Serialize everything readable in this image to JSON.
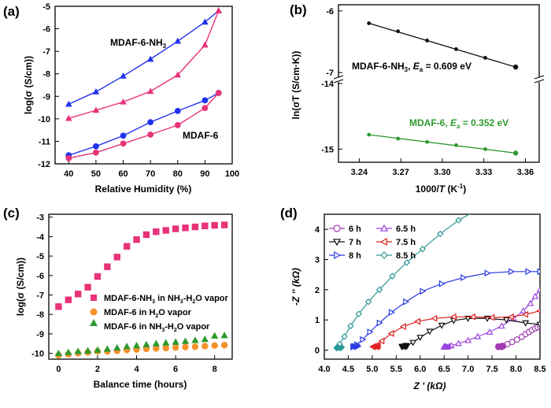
{
  "chart_data": [
    {
      "panel": "(a)",
      "type": "line",
      "xlabel": "Relative Humidity (%)",
      "ylabel": "log(σ (S/cm))",
      "xlim": [
        35,
        100
      ],
      "ylim": [
        -12,
        -5
      ],
      "xticks": [
        "40",
        "50",
        "60",
        "70",
        "80",
        "90",
        "100"
      ],
      "yticks": [
        "-12",
        "-11",
        "-10",
        "-9",
        "-8",
        "-7",
        "-6",
        "-5"
      ],
      "series": [
        {
          "name": "MDAF-6-NH3 (blue)",
          "color": "#2233ee",
          "marker": "triangle",
          "x": [
            40,
            50,
            60,
            70,
            80,
            90,
            95
          ],
          "y": [
            -9.35,
            -8.8,
            -8.1,
            -7.35,
            -6.55,
            -5.7,
            -5.2
          ]
        },
        {
          "name": "MDAF-6-NH3 (pink)",
          "color": "#e8337a",
          "marker": "triangle",
          "x": [
            40,
            50,
            60,
            70,
            80,
            90,
            95
          ],
          "y": [
            -9.98,
            -9.62,
            -9.25,
            -8.78,
            -8.05,
            -6.72,
            -5.2
          ]
        },
        {
          "name": "MDAF-6 (blue)",
          "color": "#2233ee",
          "marker": "circle",
          "x": [
            40,
            50,
            60,
            70,
            80,
            90,
            95
          ],
          "y": [
            -11.62,
            -11.22,
            -10.75,
            -10.15,
            -9.65,
            -9.18,
            -8.85
          ]
        },
        {
          "name": "MDAF-6 (pink)",
          "color": "#e8337a",
          "marker": "circle",
          "x": [
            40,
            50,
            60,
            70,
            80,
            90,
            95
          ],
          "y": [
            -11.75,
            -11.5,
            -11.1,
            -10.7,
            -10.28,
            -9.52,
            -8.85
          ]
        }
      ],
      "annotations": {
        "label1": "MDAF-6-NH",
        "label1_sub": "3",
        "label2": "MDAF-6"
      }
    },
    {
      "panel": "(b)",
      "type": "scatter",
      "xlabel_pre": "1000/",
      "xlabel_it": "T",
      "xlabel_post": " (K",
      "xlabel_sup": "-1",
      "xlabel_end": ")",
      "ylabel": "ln(σT (S/cm·K))",
      "xlim": [
        3.225,
        3.37
      ],
      "xticks": [
        "3.24",
        "3.27",
        "3.30",
        "3.33",
        "3.36"
      ],
      "yticks_upper": [
        "-7",
        "-6"
      ],
      "yticks_lower": [
        "-15",
        "-14"
      ],
      "series": [
        {
          "name": "MDAF-6-NH3",
          "color": "#111111",
          "x": [
            3.247,
            3.268,
            3.289,
            3.31,
            3.331,
            3.353
          ],
          "y": [
            -6.2,
            -6.33,
            -6.48,
            -6.62,
            -6.76,
            -6.91
          ]
        },
        {
          "name": "MDAF-6",
          "color": "#2f9a2f",
          "x": [
            3.247,
            3.268,
            3.289,
            3.31,
            3.331,
            3.353
          ],
          "y": [
            -14.78,
            -14.84,
            -14.89,
            -14.94,
            -15.0,
            -15.06
          ]
        }
      ],
      "annotations": {
        "nh3_a": "MDAF-6-NH",
        "nh3_b": "3",
        "nh3_c": ", ",
        "nh3_d": "E",
        "nh3_e": "a",
        "nh3_f": " = 0.609 eV",
        "m6_a": "MDAF-6, ",
        "m6_b": "E",
        "m6_c": "a",
        "m6_d": " = 0.352 eV"
      }
    },
    {
      "panel": "(c)",
      "type": "scatter",
      "xlabel": "Balance time (hours)",
      "ylabel": "log(σ (S/cm))",
      "xlim": [
        -0.5,
        8.9
      ],
      "ylim": [
        -10.3,
        -2.85
      ],
      "xticks": [
        "0",
        "2",
        "4",
        "6",
        "8"
      ],
      "yticks": [
        "-10",
        "-9",
        "-8",
        "-7",
        "-6",
        "-5",
        "-4",
        "-3"
      ],
      "series": [
        {
          "name": "MDAF-6-NH3 in NH3-H2O vapor",
          "color": "#e8337a",
          "marker": "square",
          "x": [
            0,
            0.5,
            1,
            1.5,
            2,
            2.5,
            3,
            3.5,
            4,
            4.5,
            5,
            5.5,
            6,
            6.5,
            7,
            7.5,
            8,
            8.5
          ],
          "y": [
            -7.6,
            -7.25,
            -6.95,
            -6.6,
            -6.05,
            -5.55,
            -5.05,
            -4.5,
            -4.15,
            -3.9,
            -3.75,
            -3.68,
            -3.6,
            -3.55,
            -3.5,
            -3.45,
            -3.42,
            -3.4
          ]
        },
        {
          "name": "MDAF-6 in H2O vapor",
          "color": "#f5912b",
          "marker": "circle",
          "x": [
            0,
            0.5,
            1,
            1.5,
            2,
            2.5,
            3,
            3.5,
            4,
            4.5,
            5,
            5.5,
            6,
            6.5,
            7,
            7.5,
            8,
            8.5
          ],
          "y": [
            -10.1,
            -10.05,
            -10.0,
            -9.95,
            -9.9,
            -9.9,
            -9.87,
            -9.83,
            -9.8,
            -9.77,
            -9.75,
            -9.73,
            -9.7,
            -9.68,
            -9.66,
            -9.63,
            -9.6,
            -9.58
          ]
        },
        {
          "name": "MDAF-6 in NH3-H2O vapor",
          "color": "#2f9a2f",
          "marker": "triangle",
          "x": [
            0,
            0.5,
            1,
            1.5,
            2,
            2.5,
            3,
            3.5,
            4,
            4.5,
            5,
            5.5,
            6,
            6.5,
            7,
            7.5,
            8,
            8.5
          ],
          "y": [
            -10.0,
            -9.95,
            -9.9,
            -9.87,
            -9.83,
            -9.78,
            -9.72,
            -9.65,
            -9.6,
            -9.55,
            -9.5,
            -9.46,
            -9.42,
            -9.38,
            -9.33,
            -9.28,
            -9.1,
            -9.08
          ]
        }
      ],
      "legend": {
        "l1_a": "MDAF-6-NH",
        "l1_b": "3",
        "l1_c": " in NH",
        "l1_d": "3",
        "l1_e": "-H",
        "l1_f": "2",
        "l1_g": "O vapor",
        "l2_a": "MDAF-6 in H",
        "l2_b": "2",
        "l2_c": "O vapor",
        "l3_a": "MDAF-6 in NH",
        "l3_b": "3",
        "l3_c": "-H",
        "l3_d": "2",
        "l3_e": "O vapor"
      }
    },
    {
      "panel": "(d)",
      "type": "line",
      "xlabel": "Z ' (kΩ)",
      "ylabel": "-Z '' (kΩ)",
      "xlim": [
        4.0,
        8.5
      ],
      "ylim": [
        -0.3,
        4.5
      ],
      "xticks": [
        "4.0",
        "4.5",
        "5.0",
        "5.5",
        "6.0",
        "6.5",
        "7.0",
        "7.5",
        "8.0",
        "8.5"
      ],
      "yticks": [
        "0",
        "1",
        "2",
        "3",
        "4"
      ],
      "series": [
        {
          "name": "6 h",
          "color": "#a03ab0",
          "marker": "circle",
          "x": [
            7.63,
            7.72,
            7.82,
            7.92,
            8.02,
            8.12,
            8.2,
            8.27,
            8.33,
            8.4,
            8.45,
            8.5
          ],
          "y": [
            0.12,
            0.14,
            0.2,
            0.27,
            0.35,
            0.44,
            0.53,
            0.6,
            0.66,
            0.72,
            0.76,
            0.8
          ]
        },
        {
          "name": "6.5 h",
          "color": "#9b45e0",
          "marker": "triangle-up",
          "x": [
            6.5,
            6.65,
            6.8,
            7.0,
            7.2,
            7.45,
            7.7,
            7.95,
            8.15,
            8.3,
            8.4,
            8.5
          ],
          "y": [
            0.12,
            0.15,
            0.22,
            0.32,
            0.45,
            0.6,
            0.8,
            1.05,
            1.3,
            1.55,
            1.78,
            2.0
          ]
        },
        {
          "name": "7 h",
          "color": "#111111",
          "marker": "triangle-down",
          "x": [
            5.62,
            5.7,
            5.85,
            6.0,
            6.2,
            6.45,
            6.7,
            7.0,
            7.4,
            7.8,
            8.2,
            8.5
          ],
          "y": [
            0.12,
            0.15,
            0.25,
            0.42,
            0.62,
            0.82,
            0.98,
            1.05,
            1.05,
            1.0,
            0.9,
            0.85
          ]
        },
        {
          "name": "7.5 h",
          "color": "#e02020",
          "marker": "triangle-left",
          "x": [
            5.02,
            5.08,
            5.2,
            5.4,
            5.65,
            5.95,
            6.3,
            6.7,
            7.1,
            7.5,
            7.9,
            8.2,
            8.5
          ],
          "y": [
            0.12,
            0.15,
            0.3,
            0.55,
            0.78,
            0.95,
            1.05,
            1.1,
            1.1,
            1.08,
            1.1,
            1.18,
            1.3
          ]
        },
        {
          "name": "8 h",
          "color": "#2a3ce0",
          "marker": "triangle-right",
          "x": [
            4.6,
            4.68,
            4.8,
            4.95,
            5.15,
            5.4,
            5.7,
            6.05,
            6.45,
            6.9,
            7.4,
            7.9,
            8.25,
            8.5
          ],
          "y": [
            0.12,
            0.18,
            0.35,
            0.6,
            0.9,
            1.25,
            1.6,
            1.95,
            2.2,
            2.4,
            2.55,
            2.6,
            2.6,
            2.6
          ]
        },
        {
          "name": "8.5 h",
          "color": "#2f9a98",
          "marker": "diamond",
          "x": [
            4.26,
            4.32,
            4.42,
            4.55,
            4.72,
            4.92,
            5.15,
            5.42,
            5.72,
            6.05,
            6.42,
            6.8,
            7.25
          ],
          "y": [
            0.08,
            0.2,
            0.45,
            0.8,
            1.2,
            1.6,
            2.0,
            2.45,
            2.9,
            3.35,
            3.85,
            4.3,
            4.7
          ]
        }
      ],
      "legend": [
        "6 h",
        "6.5 h",
        "7 h",
        "7.5 h",
        "8 h",
        "8.5 h"
      ]
    }
  ]
}
